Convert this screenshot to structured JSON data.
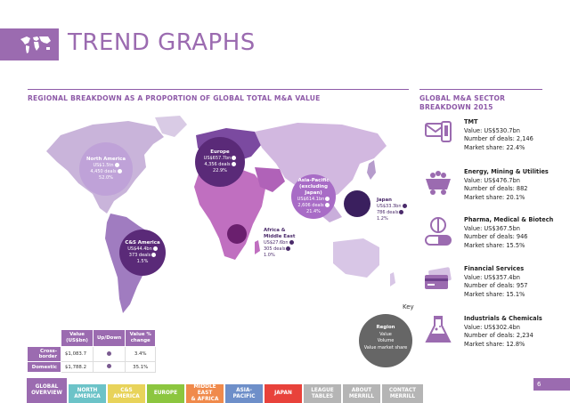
{
  "header": {
    "title": "TREND GRAPHS"
  },
  "sections": {
    "regional_title": "REGIONAL BREAKDOWN AS A PROPORTION OF GLOBAL TOTAL M&A VALUE",
    "sector_title_1": "GLOBAL M&A SECTOR",
    "sector_title_2": "BREAKDOWN 2015"
  },
  "regions": {
    "north_america": {
      "name": "North America",
      "value": "US$1.5tn",
      "deals": "4,450 deals",
      "share": "52.0%"
    },
    "europe": {
      "name": "Europe",
      "value": "US$657.7bn",
      "deals": "4,356 deals",
      "share": "22.9%"
    },
    "asia_pacific": {
      "name_1": "Asia-Pacific",
      "name_2": "(excluding Japan)",
      "value": "US$614.1bn",
      "deals": "2,606 deals",
      "share": "21.4%"
    },
    "japan": {
      "name": "Japan",
      "value": "US$33.3bn",
      "deals": "786 deals",
      "share": "1.2%"
    },
    "africa_me": {
      "name_1": "Africa &",
      "name_2": "Middle East",
      "value": "US$27.6bn",
      "deals": "305 deals",
      "share": "1.0%"
    },
    "cs_america": {
      "name": "C&S America",
      "value": "US$44.4bn",
      "deals": "373 deals",
      "share": "1.5%"
    }
  },
  "sectors": [
    {
      "title": "TMT",
      "value": "Value: US$530.7bn",
      "deals": "Number of deals: 2,146",
      "share": "Market share: 22.4%"
    },
    {
      "title": "Energy, Mining & Utilities",
      "value": "Value: US$476.7bn",
      "deals": "Number of deals: 882",
      "share": "Market share: 20.1%"
    },
    {
      "title": "Pharma, Medical & Biotech",
      "value": "Value: US$367.5bn",
      "deals": "Number of deals: 946",
      "share": "Market share: 15.5%"
    },
    {
      "title": "Financial Services",
      "value": "Value: US$357.4bn",
      "deals": "Number of deals: 957",
      "share": "Market share: 15.1%"
    },
    {
      "title": "Industrials & Chemicals",
      "value": "Value: US$302.4bn",
      "deals": "Number of deals: 2,234",
      "share": "Market share: 12.8%"
    }
  ],
  "key": {
    "label": "Key",
    "title": "Region",
    "line1": "Value",
    "line2": "Volume",
    "line3": "Value market share"
  },
  "summary_table": {
    "headers": [
      "Value (US$bn)",
      "Up/Down",
      "Value % change"
    ],
    "rows": [
      {
        "label": "Cross-border",
        "value": "$1,083.7",
        "change": "3.4%"
      },
      {
        "label": "Domestic",
        "value": "$1,788.2",
        "change": "35.1%"
      }
    ]
  },
  "page_number": "6",
  "nav": [
    {
      "line1": "GLOBAL",
      "line2": "OVERVIEW",
      "color": "#9b6bb0"
    },
    {
      "line1": "NORTH",
      "line2": "AMERICA",
      "color": "#6cc3c8"
    },
    {
      "line1": "C&S",
      "line2": "AMERICA",
      "color": "#e8d35a"
    },
    {
      "line1": "EUROPE",
      "line2": "",
      "color": "#8cc63f"
    },
    {
      "line1": "MIDDLE EAST",
      "line2": "& AFRICA",
      "color": "#f08a4b"
    },
    {
      "line1": "ASIA-",
      "line2": "PACIFIC",
      "color": "#6e8fc9"
    },
    {
      "line1": "JAPAN",
      "line2": "",
      "color": "#e8423b"
    },
    {
      "line1": "LEAGUE",
      "line2": "TABLES",
      "color": "#b5b5b5"
    },
    {
      "line1": "ABOUT",
      "line2": "MERRILL",
      "color": "#b5b5b5"
    },
    {
      "line1": "CONTACT",
      "line2": "MERRILL",
      "color": "#b5b5b5"
    }
  ],
  "colors": {
    "accent": "#9b6bb0",
    "dark_bubble": "#5a2a78",
    "japan_bubble": "#3a1f5e"
  }
}
